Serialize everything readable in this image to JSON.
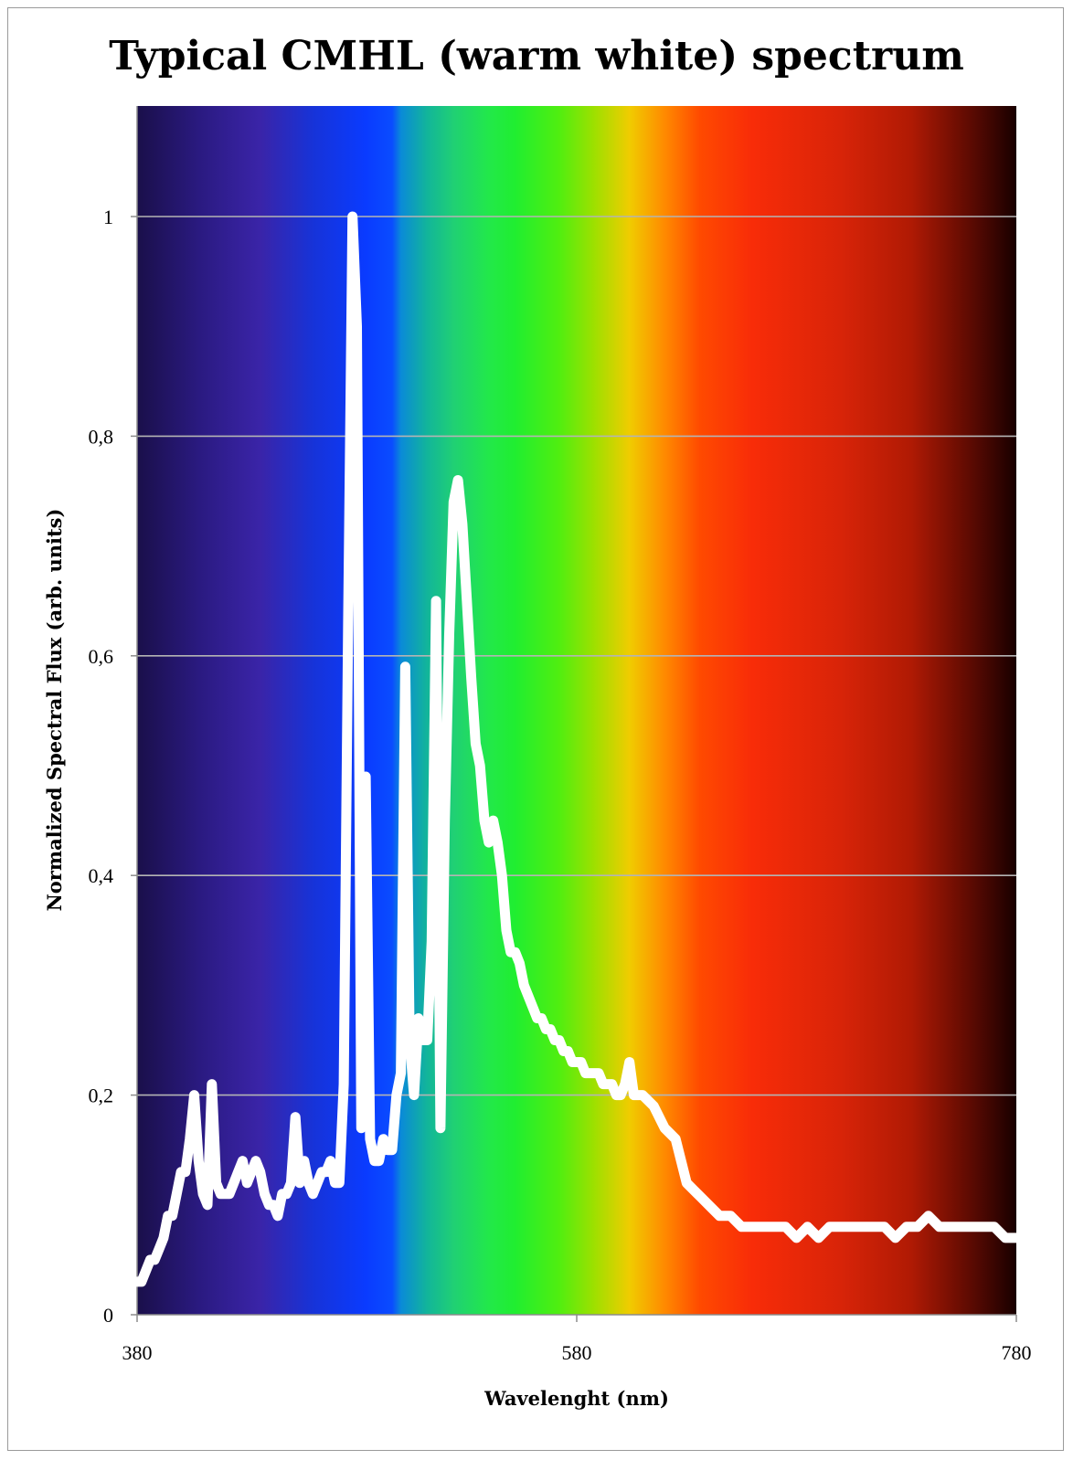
{
  "chart_data": {
    "type": "line",
    "title": "Typical CMHL (warm white) spectrum",
    "xlabel": "Wavelenght (nm)",
    "ylabel": "Normalized Spectral Flux (arb. units)",
    "xlim": [
      380,
      780
    ],
    "ylim": [
      0,
      1.1
    ],
    "x_ticks": [
      380,
      580,
      780
    ],
    "x_tick_labels": [
      "380",
      "580",
      "780"
    ],
    "y_ticks": [
      0,
      0.2,
      0.4,
      0.6,
      0.8,
      1
    ],
    "y_tick_labels": [
      "0",
      "0,2",
      "0,4",
      "0,6",
      "0,8",
      "1"
    ],
    "grid": "horizontal",
    "legend": "none",
    "background": "visible spectrum gradient",
    "line_color": "#ffffff",
    "series": [
      {
        "x": [
          380,
          382,
          384,
          386,
          388,
          390,
          392,
          394,
          396,
          398,
          400,
          402,
          404,
          406,
          408,
          410,
          412,
          414,
          416,
          418,
          420,
          422,
          424,
          426,
          428,
          430,
          432,
          434,
          436,
          438,
          440,
          442,
          444,
          446,
          448,
          450,
          452,
          454,
          456,
          458,
          460,
          462,
          464,
          466,
          468,
          470,
          472,
          474,
          476,
          478,
          480,
          482,
          484,
          486,
          488,
          490,
          492,
          494,
          496,
          498,
          500,
          502,
          504,
          506,
          508,
          510,
          512,
          514,
          516,
          518,
          520,
          522,
          524,
          526,
          528,
          530,
          532,
          534,
          536,
          538,
          540,
          542,
          544,
          546,
          548,
          550,
          552,
          554,
          556,
          558,
          560,
          562,
          564,
          566,
          568,
          570,
          572,
          574,
          576,
          578,
          580,
          582,
          584,
          586,
          588,
          590,
          592,
          594,
          596,
          598,
          600,
          602,
          604,
          606,
          608,
          610,
          615,
          620,
          625,
          630,
          635,
          640,
          645,
          650,
          655,
          660,
          665,
          670,
          675,
          680,
          685,
          690,
          695,
          700,
          705,
          710,
          715,
          720,
          725,
          730,
          735,
          740,
          745,
          750,
          755,
          760,
          765,
          770,
          775,
          780
        ],
        "y": [
          0.03,
          0.03,
          0.04,
          0.05,
          0.05,
          0.06,
          0.07,
          0.09,
          0.09,
          0.11,
          0.13,
          0.13,
          0.16,
          0.2,
          0.14,
          0.11,
          0.1,
          0.21,
          0.12,
          0.11,
          0.11,
          0.11,
          0.12,
          0.13,
          0.14,
          0.12,
          0.13,
          0.14,
          0.13,
          0.11,
          0.1,
          0.1,
          0.09,
          0.11,
          0.11,
          0.12,
          0.18,
          0.12,
          0.14,
          0.12,
          0.11,
          0.12,
          0.13,
          0.13,
          0.14,
          0.12,
          0.12,
          0.21,
          0.63,
          1.0,
          0.9,
          0.17,
          0.49,
          0.16,
          0.14,
          0.14,
          0.16,
          0.15,
          0.15,
          0.2,
          0.22,
          0.59,
          0.25,
          0.2,
          0.27,
          0.25,
          0.25,
          0.34,
          0.65,
          0.17,
          0.45,
          0.62,
          0.74,
          0.76,
          0.72,
          0.65,
          0.58,
          0.52,
          0.5,
          0.45,
          0.43,
          0.45,
          0.43,
          0.4,
          0.35,
          0.33,
          0.33,
          0.32,
          0.3,
          0.29,
          0.28,
          0.27,
          0.27,
          0.26,
          0.26,
          0.25,
          0.25,
          0.24,
          0.24,
          0.23,
          0.23,
          0.23,
          0.22,
          0.22,
          0.22,
          0.22,
          0.21,
          0.21,
          0.21,
          0.2,
          0.2,
          0.21,
          0.23,
          0.2,
          0.2,
          0.2,
          0.19,
          0.17,
          0.16,
          0.12,
          0.11,
          0.1,
          0.09,
          0.09,
          0.08,
          0.08,
          0.08,
          0.08,
          0.08,
          0.07,
          0.08,
          0.07,
          0.08,
          0.08,
          0.08,
          0.08,
          0.08,
          0.08,
          0.07,
          0.08,
          0.08,
          0.09,
          0.08,
          0.08,
          0.08,
          0.08,
          0.08,
          0.08,
          0.07,
          0.07
        ]
      }
    ]
  }
}
